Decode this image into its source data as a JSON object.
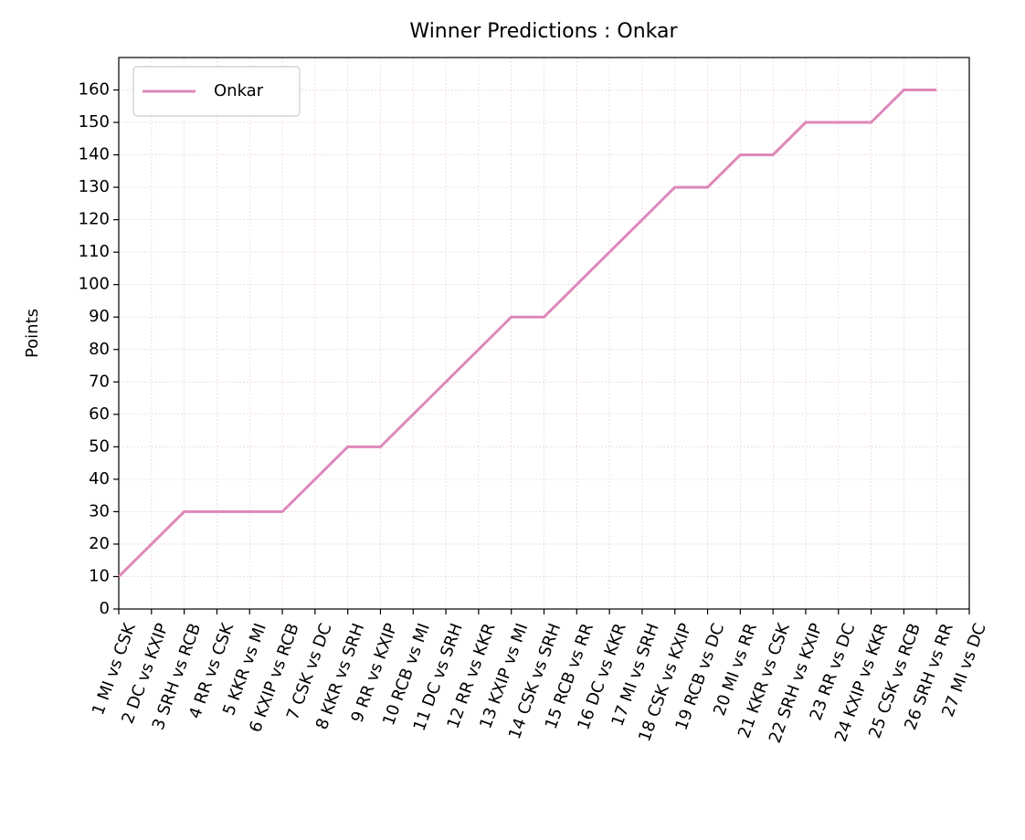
{
  "chart_data": {
    "type": "line",
    "title": "Winner Predictions : Onkar",
    "ylabel": "Points",
    "categories": [
      "1 MI vs CSK",
      "2 DC vs KXIP",
      "3 SRH vs RCB",
      "4 RR vs CSK",
      "5 KKR vs MI",
      "6 KXIP vs RCB",
      "7 CSK vs DC",
      "8 KKR vs SRH",
      "9 RR vs KXIP",
      "10 RCB vs MI",
      "11 DC vs SRH",
      "12 RR vs KKR",
      "13 KXIP vs MI",
      "14 CSK vs SRH",
      "15 RCB vs RR",
      "16 DC vs KKR",
      "17 MI vs SRH",
      "18 CSK vs KXIP",
      "19 RCB vs DC",
      "20 MI vs RR",
      "21 KKR vs CSK",
      "22 SRH vs KXIP",
      "23 RR vs DC",
      "24 KXIP vs KKR",
      "25 CSK vs RCB",
      "26 SRH vs RR",
      "27 MI vs DC"
    ],
    "series": [
      {
        "name": "Onkar",
        "color": "#de88b8",
        "values": [
          10,
          20,
          30,
          30,
          30,
          30,
          40,
          50,
          50,
          60,
          70,
          80,
          90,
          90,
          100,
          110,
          120,
          130,
          130,
          140,
          140,
          150,
          150,
          150,
          160,
          160,
          null
        ]
      }
    ],
    "ylim": [
      0,
      170
    ],
    "yticks": [
      0,
      10,
      20,
      30,
      40,
      50,
      60,
      70,
      80,
      90,
      100,
      110,
      120,
      130,
      140,
      150,
      160
    ],
    "grid": true,
    "legend": "upper left"
  }
}
